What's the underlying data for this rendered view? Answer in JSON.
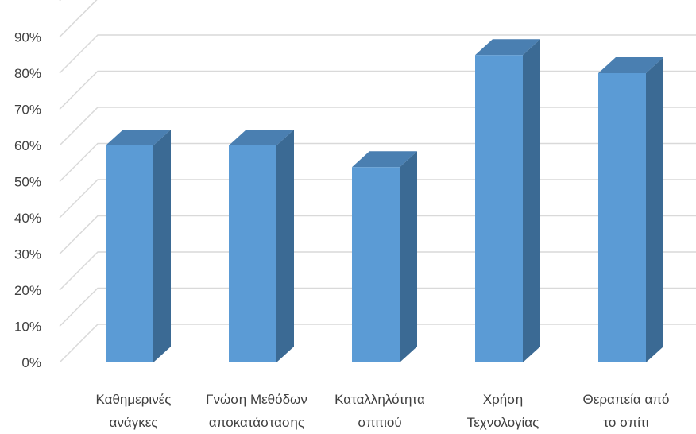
{
  "chart_data": {
    "type": "bar",
    "categories": [
      [
        "Καθημερινές",
        "ανάγκες"
      ],
      [
        "Γνώση Μεθόδων",
        "αποκατάστασης"
      ],
      [
        "Καταλληλότητα",
        "σπιτιού"
      ],
      [
        "Χρήση",
        "Τεχνολογίας"
      ],
      [
        "Θεραπεία από",
        "το σπίτι"
      ]
    ],
    "values": [
      0.6,
      0.6,
      0.54,
      0.85,
      0.8
    ],
    "ylim": [
      0,
      1.0
    ],
    "yticks": [
      "0%",
      "10%",
      "20%",
      "30%",
      "40%",
      "50%",
      "60%",
      "70%",
      "80%",
      "90%"
    ],
    "title": "",
    "xlabel": "",
    "ylabel": "",
    "grid": true,
    "style": "3d-bar",
    "colors": {
      "front": "#5b9bd5",
      "side": "#3b6a94",
      "top": "#4a7fb1",
      "grid": "#d9d9d9",
      "text": "#404040"
    }
  }
}
